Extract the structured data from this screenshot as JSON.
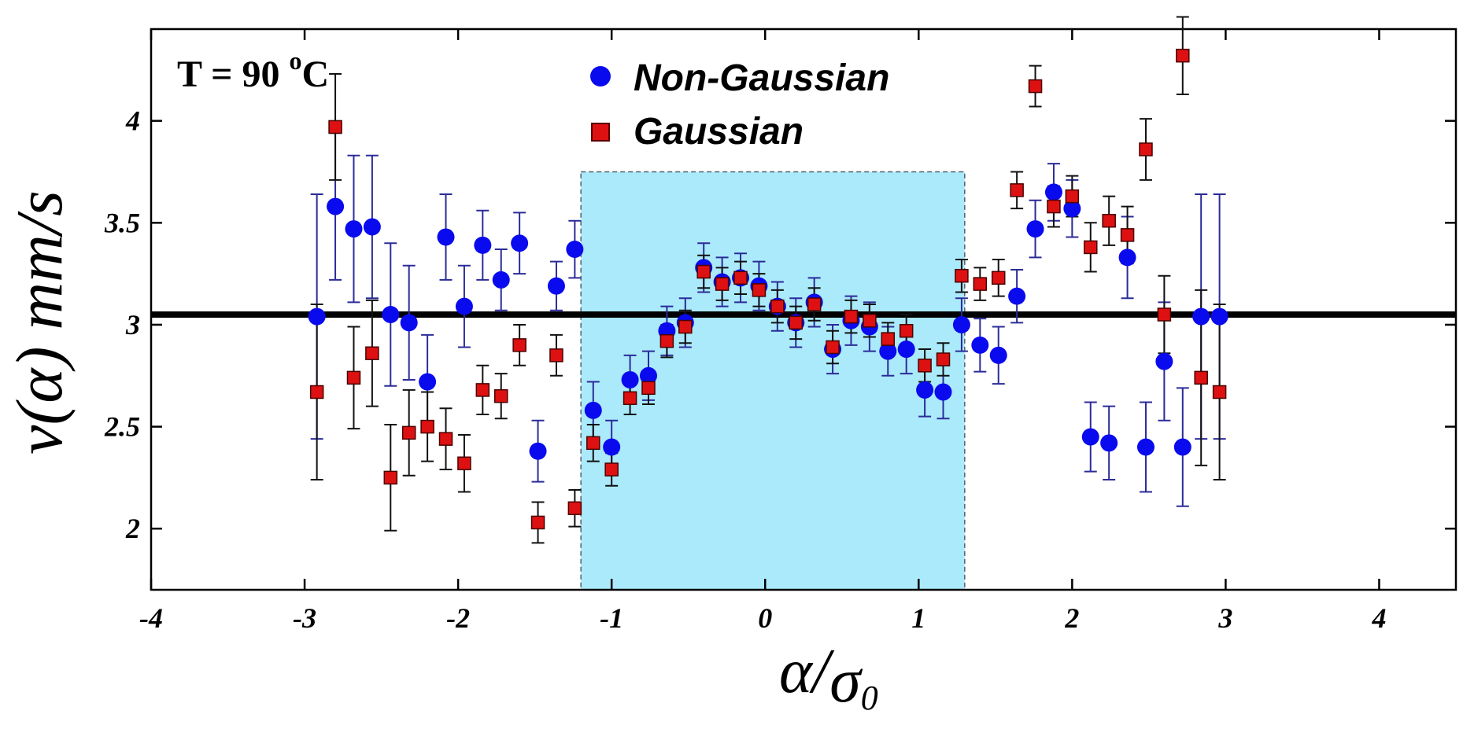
{
  "chart_data": {
    "type": "scatter",
    "annotation": {
      "prefix": "T = 90 ",
      "superscript": "o",
      "suffix": "C"
    },
    "xlabel": {
      "symbol": "α",
      "separator": "/",
      "denominator": "σ",
      "subscript": "0"
    },
    "ylabel": "v(α) mm/s",
    "xlim": [
      -4,
      4.5
    ],
    "ylim": [
      1.7,
      4.45
    ],
    "xticks": [
      -4,
      -3,
      -2,
      -1,
      0,
      1,
      2,
      3,
      4
    ],
    "xtick_labels": [
      "-4",
      "-3",
      "-2",
      "-1",
      "0",
      "1",
      "2",
      "3",
      "4"
    ],
    "yticks": [
      2,
      2.5,
      3,
      3.5,
      4
    ],
    "ytick_labels": [
      "2",
      "2.5",
      "3",
      "3.5",
      "4"
    ],
    "reference_line_y": 3.05,
    "shaded_region": {
      "x": [
        -1.2,
        1.3
      ],
      "y": [
        1.7,
        3.75
      ],
      "color": "#aaeafa"
    },
    "legend_position": "top-center",
    "series": [
      {
        "name": "Non-Gaussian",
        "marker": "circle",
        "color": "#0a0aee",
        "error_color": "#2b2b99",
        "x": [
          -2.92,
          -2.8,
          -2.68,
          -2.56,
          -2.44,
          -2.32,
          -2.2,
          -2.08,
          -1.96,
          -1.84,
          -1.72,
          -1.6,
          -1.48,
          -1.36,
          -1.24,
          -1.12,
          -1.0,
          -0.88,
          -0.76,
          -0.64,
          -0.52,
          -0.4,
          -0.28,
          -0.16,
          -0.04,
          0.08,
          0.2,
          0.32,
          0.44,
          0.56,
          0.68,
          0.8,
          0.92,
          1.04,
          1.16,
          1.28,
          1.4,
          1.52,
          1.64,
          1.76,
          1.88,
          2.0,
          2.12,
          2.24,
          2.36,
          2.48,
          2.6,
          2.72,
          2.84,
          2.96
        ],
        "y": [
          3.04,
          3.58,
          3.47,
          3.48,
          3.05,
          3.01,
          2.72,
          3.43,
          3.09,
          3.39,
          3.22,
          3.4,
          2.38,
          3.19,
          3.37,
          2.58,
          2.4,
          2.73,
          2.75,
          2.97,
          3.01,
          3.28,
          3.21,
          3.23,
          3.19,
          3.09,
          3.01,
          3.11,
          2.88,
          3.02,
          2.99,
          2.87,
          2.88,
          2.68,
          2.67,
          3.0,
          2.9,
          2.85,
          3.14,
          3.47,
          3.65,
          3.57,
          2.45,
          2.42,
          3.33,
          2.4,
          2.82,
          2.4,
          3.04,
          3.04
        ],
        "err": [
          0.6,
          0.36,
          0.36,
          0.35,
          0.35,
          0.28,
          0.23,
          0.21,
          0.2,
          0.17,
          0.15,
          0.15,
          0.15,
          0.12,
          0.14,
          0.14,
          0.13,
          0.12,
          0.12,
          0.12,
          0.12,
          0.12,
          0.12,
          0.12,
          0.12,
          0.12,
          0.12,
          0.12,
          0.12,
          0.12,
          0.12,
          0.12,
          0.12,
          0.13,
          0.13,
          0.13,
          0.13,
          0.14,
          0.13,
          0.14,
          0.14,
          0.14,
          0.17,
          0.18,
          0.2,
          0.22,
          0.29,
          0.29,
          0.6,
          0.6
        ]
      },
      {
        "name": "Gaussian",
        "marker": "square",
        "color": "#dd1111",
        "error_color": "#111111",
        "x": [
          -2.92,
          -2.8,
          -2.68,
          -2.56,
          -2.44,
          -2.32,
          -2.2,
          -2.08,
          -1.96,
          -1.84,
          -1.72,
          -1.6,
          -1.48,
          -1.36,
          -1.24,
          -1.12,
          -1.0,
          -0.88,
          -0.76,
          -0.64,
          -0.52,
          -0.4,
          -0.28,
          -0.16,
          -0.04,
          0.08,
          0.2,
          0.32,
          0.44,
          0.56,
          0.68,
          0.8,
          0.92,
          1.04,
          1.16,
          1.28,
          1.4,
          1.52,
          1.64,
          1.76,
          1.88,
          2.0,
          2.12,
          2.24,
          2.36,
          2.48,
          2.6,
          2.72,
          2.84,
          2.96
        ],
        "y": [
          2.67,
          3.97,
          2.74,
          2.86,
          2.25,
          2.47,
          2.5,
          2.44,
          2.32,
          2.68,
          2.65,
          2.9,
          2.03,
          2.85,
          2.1,
          2.42,
          2.29,
          2.64,
          2.69,
          2.92,
          2.99,
          3.26,
          3.2,
          3.23,
          3.17,
          3.09,
          3.01,
          3.1,
          2.89,
          3.04,
          3.02,
          2.93,
          2.97,
          2.8,
          2.83,
          3.24,
          3.2,
          3.23,
          3.66,
          4.17,
          3.58,
          3.63,
          3.38,
          3.51,
          3.44,
          3.86,
          3.05,
          4.32,
          2.74,
          2.67
        ],
        "err": [
          0.43,
          0.26,
          0.25,
          0.26,
          0.26,
          0.21,
          0.17,
          0.15,
          0.14,
          0.12,
          0.11,
          0.1,
          0.1,
          0.1,
          0.09,
          0.09,
          0.08,
          0.08,
          0.08,
          0.08,
          0.08,
          0.08,
          0.08,
          0.08,
          0.08,
          0.08,
          0.08,
          0.08,
          0.08,
          0.08,
          0.08,
          0.08,
          0.08,
          0.08,
          0.08,
          0.08,
          0.08,
          0.09,
          0.09,
          0.1,
          0.1,
          0.1,
          0.12,
          0.12,
          0.14,
          0.15,
          0.19,
          0.19,
          0.43,
          0.43
        ]
      }
    ]
  }
}
